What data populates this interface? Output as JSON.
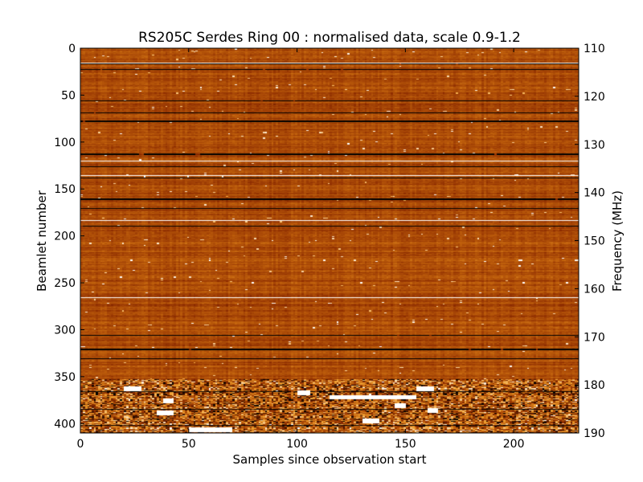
{
  "chart_data": {
    "type": "heatmap",
    "title": "RS205C Serdes Ring 00 : normalised data, scale 0.9-1.2",
    "xlabel": "Samples since observation start",
    "ylabel": "Beamlet number",
    "y2label": "Frequency (MHz)",
    "xlim": [
      0,
      230
    ],
    "ylim": [
      410,
      0
    ],
    "y2lim": [
      190,
      110
    ],
    "x_ticks": [
      0,
      50,
      100,
      150,
      200
    ],
    "x_tick_labels": [
      "0",
      "50",
      "100",
      "150",
      "200"
    ],
    "y_ticks": [
      0,
      50,
      100,
      150,
      200,
      250,
      300,
      350,
      400
    ],
    "y_tick_labels": [
      "0",
      "50",
      "100",
      "150",
      "200",
      "250",
      "300",
      "350",
      "400"
    ],
    "y2_ticks": [
      110,
      120,
      130,
      140,
      150,
      160,
      170,
      180,
      190
    ],
    "y2_tick_labels": [
      "110",
      "120",
      "130",
      "140",
      "150",
      "160",
      "170",
      "180",
      "190"
    ],
    "value_scale": [
      0.9,
      1.2
    ],
    "colormap": "afmhot",
    "colormap_stops": [
      "#000000",
      "#8b2a00",
      "#c0600c",
      "#f0a030",
      "#ffffff"
    ],
    "grid": false,
    "colorbar": false,
    "base_value": 1.02,
    "dark_rows": [
      16,
      22,
      55,
      68,
      77,
      112,
      125,
      137,
      160,
      170,
      183,
      189,
      305,
      320,
      330,
      365,
      384,
      401
    ],
    "bright_rows": [
      15,
      119,
      135,
      183,
      265
    ],
    "bright_block": {
      "rows": [
        352,
        410
      ],
      "cells": [
        [
          362,
          20,
          8
        ],
        [
          362,
          155,
          8
        ],
        [
          366,
          100,
          6
        ],
        [
          371,
          115,
          40
        ],
        [
          375,
          38,
          5
        ],
        [
          380,
          145,
          5
        ],
        [
          385,
          160,
          5
        ],
        [
          388,
          35,
          8
        ],
        [
          396,
          130,
          8
        ],
        [
          406,
          50,
          20
        ]
      ]
    }
  }
}
